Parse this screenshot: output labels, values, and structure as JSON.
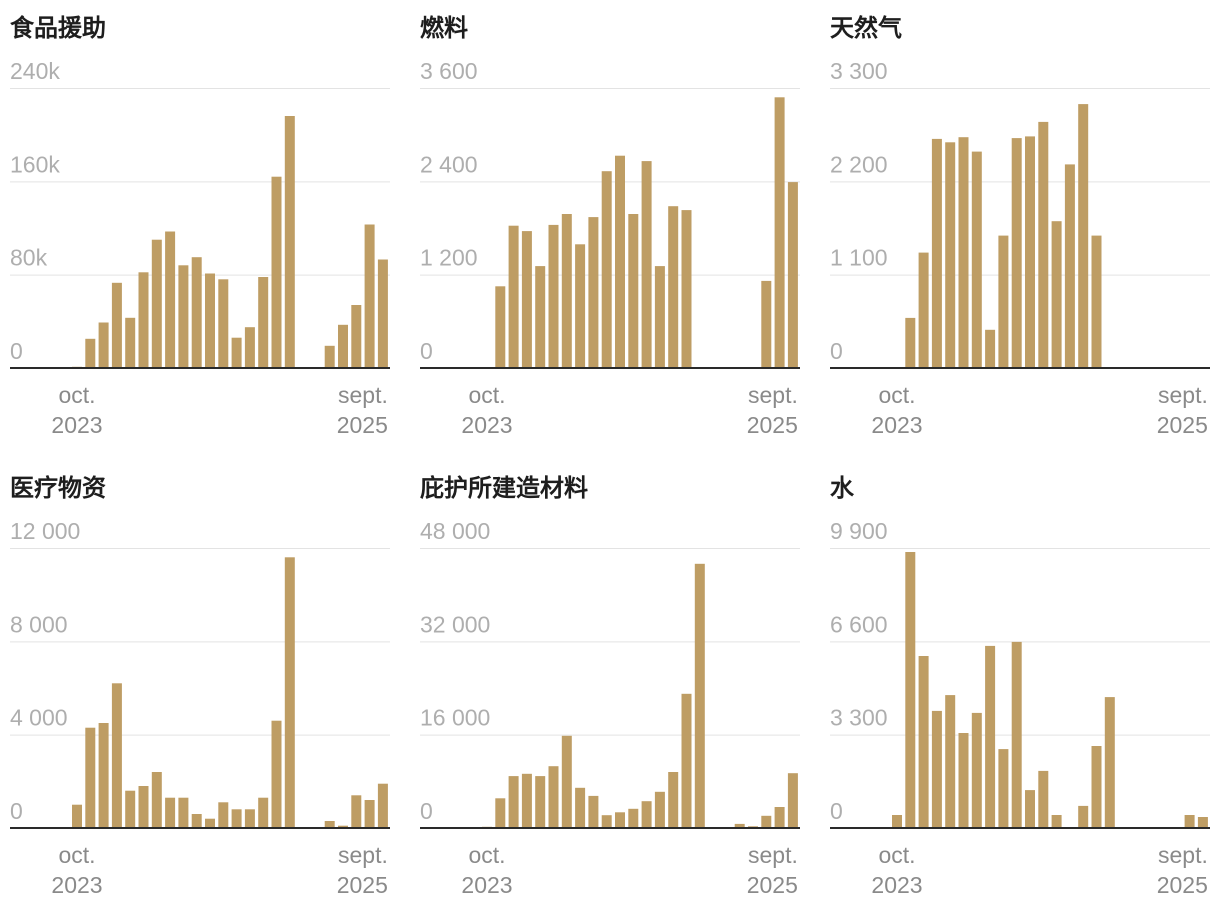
{
  "colors": {
    "bar": "#BE9D64",
    "grid": "#E3E3E3",
    "axis": "#2A2A2A",
    "ytick": "#AEAEAE",
    "xtick": "#8A8A8A"
  },
  "chart_data": [
    {
      "type": "bar",
      "title": "食品援助",
      "x": [
        "2023-10",
        "2023-11",
        "2023-12",
        "2024-01",
        "2024-02",
        "2024-03",
        "2024-04",
        "2024-05",
        "2024-06",
        "2024-07",
        "2024-08",
        "2024-09",
        "2024-10",
        "2024-11",
        "2024-12",
        "2025-01",
        "2025-02",
        "2025-03",
        "2025-04",
        "2025-05",
        "2025-06",
        "2025-07",
        "2025-08",
        "2025-09"
      ],
      "values": [
        1000,
        25000,
        39000,
        73000,
        43000,
        82000,
        110000,
        117000,
        88000,
        95000,
        81000,
        76000,
        26000,
        35000,
        78000,
        164000,
        216000,
        0,
        0,
        19000,
        37000,
        54000,
        123000,
        93000
      ],
      "ylim": [
        0,
        240000
      ],
      "yticks": [
        {
          "value": 240000,
          "label": "240k"
        },
        {
          "value": 160000,
          "label": "160k"
        },
        {
          "value": 80000,
          "label": "80k"
        },
        {
          "value": 0,
          "label": "0"
        }
      ],
      "xticks": [
        {
          "x": "2023-10",
          "month": "oct.",
          "year": "2023"
        },
        {
          "x": "2025-09",
          "month": "sept.",
          "year": "2025"
        }
      ],
      "grid": true
    },
    {
      "type": "bar",
      "title": "燃料",
      "x": [
        "2023-10",
        "2023-11",
        "2023-12",
        "2024-01",
        "2024-02",
        "2024-03",
        "2024-04",
        "2024-05",
        "2024-06",
        "2024-07",
        "2024-08",
        "2024-09",
        "2024-10",
        "2024-11",
        "2024-12",
        "2025-01",
        "2025-02",
        "2025-03",
        "2025-04",
        "2025-05",
        "2025-06",
        "2025-07",
        "2025-08",
        "2025-09"
      ],
      "values": [
        0,
        1050,
        1830,
        1760,
        1310,
        1840,
        1980,
        1590,
        1940,
        2530,
        2730,
        1980,
        2660,
        1310,
        2080,
        2030,
        0,
        0,
        0,
        0,
        0,
        1120,
        3480,
        2390
      ],
      "ylim": [
        0,
        3600
      ],
      "yticks": [
        {
          "value": 3600,
          "label": "3 600"
        },
        {
          "value": 2400,
          "label": "2 400"
        },
        {
          "value": 1200,
          "label": "1 200"
        },
        {
          "value": 0,
          "label": "0"
        }
      ],
      "xticks": [
        {
          "x": "2023-10",
          "month": "oct.",
          "year": "2023"
        },
        {
          "x": "2025-09",
          "month": "sept.",
          "year": "2025"
        }
      ],
      "grid": true
    },
    {
      "type": "bar",
      "title": "天然气",
      "x": [
        "2023-10",
        "2023-11",
        "2023-12",
        "2024-01",
        "2024-02",
        "2024-03",
        "2024-04",
        "2024-05",
        "2024-06",
        "2024-07",
        "2024-08",
        "2024-09",
        "2024-10",
        "2024-11",
        "2024-12",
        "2025-01",
        "2025-02",
        "2025-03",
        "2025-04",
        "2025-05",
        "2025-06",
        "2025-07",
        "2025-08",
        "2025-09"
      ],
      "values": [
        0,
        590,
        1360,
        2700,
        2660,
        2720,
        2550,
        450,
        1560,
        2710,
        2730,
        2900,
        1730,
        2400,
        3110,
        1560,
        0,
        0,
        0,
        0,
        0,
        0,
        0,
        0
      ],
      "ylim": [
        0,
        3300
      ],
      "yticks": [
        {
          "value": 3300,
          "label": "3 300"
        },
        {
          "value": 2200,
          "label": "2 200"
        },
        {
          "value": 1100,
          "label": "1 100"
        },
        {
          "value": 0,
          "label": "0"
        }
      ],
      "xticks": [
        {
          "x": "2023-10",
          "month": "oct.",
          "year": "2023"
        },
        {
          "x": "2025-09",
          "month": "sept.",
          "year": "2025"
        }
      ],
      "grid": true
    },
    {
      "type": "bar",
      "title": "医疗物资",
      "x": [
        "2023-10",
        "2023-11",
        "2023-12",
        "2024-01",
        "2024-02",
        "2024-03",
        "2024-04",
        "2024-05",
        "2024-06",
        "2024-07",
        "2024-08",
        "2024-09",
        "2024-10",
        "2024-11",
        "2024-12",
        "2025-01",
        "2025-02",
        "2025-03",
        "2025-04",
        "2025-05",
        "2025-06",
        "2025-07",
        "2025-08",
        "2025-09"
      ],
      "values": [
        1000,
        4300,
        4500,
        6200,
        1600,
        1800,
        2400,
        1300,
        1300,
        600,
        400,
        1100,
        800,
        800,
        1300,
        4600,
        11600,
        0,
        0,
        300,
        100,
        1400,
        1200,
        1900
      ],
      "ylim": [
        0,
        12000
      ],
      "yticks": [
        {
          "value": 12000,
          "label": "12 000"
        },
        {
          "value": 8000,
          "label": "8 000"
        },
        {
          "value": 4000,
          "label": "4 000"
        },
        {
          "value": 0,
          "label": "0"
        }
      ],
      "xticks": [
        {
          "x": "2023-10",
          "month": "oct.",
          "year": "2023"
        },
        {
          "x": "2025-09",
          "month": "sept.",
          "year": "2025"
        }
      ],
      "grid": true
    },
    {
      "type": "bar",
      "title": "庇护所建造材料",
      "x": [
        "2023-10",
        "2023-11",
        "2023-12",
        "2024-01",
        "2024-02",
        "2024-03",
        "2024-04",
        "2024-05",
        "2024-06",
        "2024-07",
        "2024-08",
        "2024-09",
        "2024-10",
        "2024-11",
        "2024-12",
        "2025-01",
        "2025-02",
        "2025-03",
        "2025-04",
        "2025-05",
        "2025-06",
        "2025-07",
        "2025-08",
        "2025-09"
      ],
      "values": [
        200,
        5100,
        8900,
        9300,
        8900,
        10600,
        15800,
        6900,
        5500,
        2200,
        2700,
        3300,
        4600,
        6200,
        9600,
        23000,
        45300,
        0,
        0,
        700,
        300,
        2100,
        3600,
        9400
      ],
      "ylim": [
        0,
        48000
      ],
      "yticks": [
        {
          "value": 48000,
          "label": "48 000"
        },
        {
          "value": 32000,
          "label": "32 000"
        },
        {
          "value": 16000,
          "label": "16 000"
        },
        {
          "value": 0,
          "label": "0"
        }
      ],
      "xticks": [
        {
          "x": "2023-10",
          "month": "oct.",
          "year": "2023"
        },
        {
          "x": "2025-09",
          "month": "sept.",
          "year": "2025"
        }
      ],
      "grid": true
    },
    {
      "type": "bar",
      "title": "水",
      "x": [
        "2023-10",
        "2023-11",
        "2023-12",
        "2024-01",
        "2024-02",
        "2024-03",
        "2024-04",
        "2024-05",
        "2024-06",
        "2024-07",
        "2024-08",
        "2024-09",
        "2024-10",
        "2024-11",
        "2024-12",
        "2025-01",
        "2025-02",
        "2025-03",
        "2025-04",
        "2025-05",
        "2025-06",
        "2025-07",
        "2025-08",
        "2025-09"
      ],
      "values": [
        460,
        9760,
        6080,
        4140,
        4700,
        3360,
        4070,
        6440,
        2790,
        6580,
        1340,
        2020,
        460,
        0,
        780,
        2900,
        4630,
        0,
        0,
        0,
        0,
        0,
        460,
        390
      ],
      "ylim": [
        0,
        9900
      ],
      "yticks": [
        {
          "value": 9900,
          "label": "9 900"
        },
        {
          "value": 6600,
          "label": "6 600"
        },
        {
          "value": 3300,
          "label": "3 300"
        },
        {
          "value": 0,
          "label": "0"
        }
      ],
      "xticks": [
        {
          "x": "2023-10",
          "month": "oct.",
          "year": "2023"
        },
        {
          "x": "2025-09",
          "month": "sept.",
          "year": "2025"
        }
      ],
      "grid": true
    }
  ]
}
